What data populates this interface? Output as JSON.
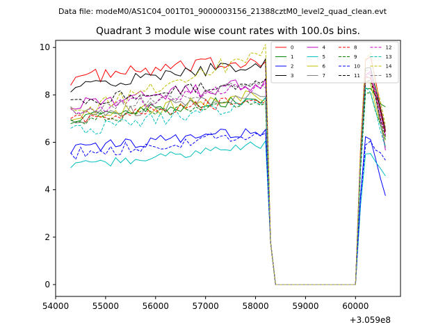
{
  "suptitle": "Data file: modeM0/AS1C04_001T01_9000003156_21388cztM0_level2_quad_clean.evt",
  "chart_data": {
    "type": "line",
    "title": "Quadrant 3 module wise count rates with 100.0s bins.",
    "xlabel": "",
    "ylabel": "",
    "x_offset_label": "+3.059e8",
    "xlim": [
      54000,
      60900
    ],
    "ylim": [
      -0.5,
      10.3
    ],
    "x_ticks": [
      54000,
      55000,
      56000,
      57000,
      58000,
      59000,
      60000
    ],
    "y_ticks": [
      0,
      2,
      4,
      6,
      8,
      10
    ],
    "grid": false,
    "legend_position": "top-right",
    "legend_columns": 4,
    "segments": [
      {
        "start": 54300,
        "end": 58200
      },
      {
        "start": 58300,
        "end": 60000
      },
      {
        "start": 60100,
        "end": 60600
      }
    ],
    "series": [
      {
        "name": "0",
        "color": "#ff0000",
        "dash": "solid",
        "early": 8.7,
        "late": 9.5,
        "peak": 9.6,
        "end": 6.5,
        "noise": 0.3
      },
      {
        "name": "1",
        "color": "#008000",
        "dash": "solid",
        "early": 7.0,
        "late": 7.9,
        "peak": 8.3,
        "end": 7.4,
        "noise": 0.25
      },
      {
        "name": "2",
        "color": "#0000ff",
        "dash": "solid",
        "early": 5.7,
        "late": 6.5,
        "peak": 6.2,
        "end": 3.8,
        "noise": 0.25
      },
      {
        "name": "3",
        "color": "#000000",
        "dash": "solid",
        "early": 8.3,
        "late": 9.4,
        "peak": 9.0,
        "end": 6.4,
        "noise": 0.3
      },
      {
        "name": "4",
        "color": "#bf00bf",
        "dash": "solid",
        "early": 7.6,
        "late": 8.5,
        "peak": 8.9,
        "end": 5.8,
        "noise": 0.3
      },
      {
        "name": "5",
        "color": "#00bfbf",
        "dash": "solid",
        "early": 5.0,
        "late": 5.9,
        "peak": 5.5,
        "end": 4.6,
        "noise": 0.2
      },
      {
        "name": "6",
        "color": "#bfbf00",
        "dash": "solid",
        "early": 7.0,
        "late": 8.0,
        "peak": 8.5,
        "end": 6.0,
        "noise": 0.3
      },
      {
        "name": "7",
        "color": "#808080",
        "dash": "solid",
        "early": 7.0,
        "late": 8.1,
        "peak": 8.8,
        "end": 5.9,
        "noise": 0.25
      },
      {
        "name": "8",
        "color": "#ff0000",
        "dash": "dashed",
        "early": 7.0,
        "late": 7.8,
        "peak": 8.8,
        "end": 6.3,
        "noise": 0.25
      },
      {
        "name": "9",
        "color": "#008000",
        "dash": "dashed",
        "early": 6.9,
        "late": 7.7,
        "peak": 8.0,
        "end": 6.0,
        "noise": 0.25
      },
      {
        "name": "10",
        "color": "#0000ff",
        "dash": "dashed",
        "early": 5.5,
        "late": 6.4,
        "peak": 6.0,
        "end": 5.3,
        "noise": 0.25
      },
      {
        "name": "11",
        "color": "#000000",
        "dash": "dashed",
        "early": 7.7,
        "late": 8.6,
        "peak": 8.6,
        "end": 6.2,
        "noise": 0.25
      },
      {
        "name": "12",
        "color": "#bf00bf",
        "dash": "dashed",
        "early": 7.3,
        "late": 8.4,
        "peak": 8.9,
        "end": 6.4,
        "noise": 0.25
      },
      {
        "name": "13",
        "color": "#00bfbf",
        "dash": "dashed",
        "early": 6.4,
        "late": 7.7,
        "peak": 8.2,
        "end": 5.8,
        "noise": 0.3
      },
      {
        "name": "14",
        "color": "#bfbf00",
        "dash": "dashed",
        "early": 7.2,
        "late": 9.8,
        "peak": 9.6,
        "end": 6.6,
        "noise": 0.35
      },
      {
        "name": "15",
        "color": "#808080",
        "dash": "dashed",
        "early": 7.3,
        "late": 8.5,
        "peak": 9.0,
        "end": 6.7,
        "noise": 0.25
      }
    ]
  }
}
